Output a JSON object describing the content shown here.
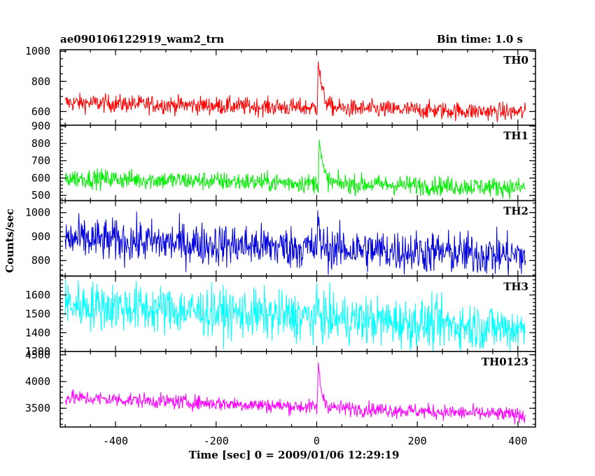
{
  "chart_data": {
    "type": "line",
    "title_left": "ae090106122919_wam2_trn",
    "title_right": "Bin time: 1.0 s",
    "xlabel": "Time [sec] 0 = 2009/01/06 12:29:19",
    "ylabel": "Counts/sec",
    "xlim": [
      -510,
      435
    ],
    "xticks": [
      "-400",
      "-200",
      "0",
      "200",
      "400"
    ],
    "x_tick_values": [
      -400,
      -200,
      0,
      200,
      400
    ],
    "x_minor_step": 50,
    "x_data_range": [
      -500,
      415
    ],
    "bin_time": 1.0,
    "grid": false,
    "legend": "none",
    "panels": [
      {
        "name": "TH0",
        "color": "#ff0000",
        "ylim": [
          510,
          1010
        ],
        "yticks": [
          "600",
          "800",
          "1000"
        ],
        "ytick_values": [
          600,
          800,
          1000
        ],
        "y_minor_step": 50,
        "baseline_start": 660,
        "baseline_end": 595,
        "noise": 30,
        "peak": {
          "t": 3,
          "amp": 330,
          "decay": 8
        }
      },
      {
        "name": "TH1",
        "color": "#00ee00",
        "ylim": [
          470,
          905
        ],
        "yticks": [
          "500",
          "600",
          "700",
          "800",
          "900"
        ],
        "ytick_values": [
          500,
          600,
          700,
          800,
          900
        ],
        "y_minor_step": 20,
        "baseline_start": 600,
        "baseline_end": 545,
        "noise": 28,
        "peak": {
          "t": 5,
          "amp": 270,
          "decay": 7
        }
      },
      {
        "name": "TH2",
        "color": "#0000dd",
        "ylim": [
          735,
          1050
        ],
        "yticks": [
          "800",
          "900",
          "1000"
        ],
        "ytick_values": [
          800,
          900,
          1000
        ],
        "y_minor_step": 20,
        "baseline_start": 890,
        "baseline_end": 820,
        "noise": 45,
        "peak": {
          "t": 2,
          "amp": 100,
          "decay": 5
        }
      },
      {
        "name": "TH3",
        "color": "#00ffff",
        "ylim": [
          1300,
          1700
        ],
        "yticks": [
          "1300",
          "1400",
          "1500",
          "1600"
        ],
        "ytick_values": [
          1300,
          1400,
          1500,
          1600
        ],
        "y_minor_step": 20,
        "baseline_start": 1550,
        "baseline_end": 1420,
        "noise": 65,
        "peak": {
          "t": 2,
          "amp": 60,
          "decay": 4
        }
      },
      {
        "name": "TH0123",
        "color": "#ff00ff",
        "ylim": [
          3150,
          4560
        ],
        "yticks": [
          "3500",
          "4000",
          "4500"
        ],
        "ytick_values": [
          3500,
          4000,
          4500
        ],
        "y_minor_step": 100,
        "baseline_start": 3700,
        "baseline_end": 3370,
        "noise": 70,
        "peak": {
          "t": 3,
          "amp": 800,
          "decay": 7
        }
      }
    ]
  }
}
